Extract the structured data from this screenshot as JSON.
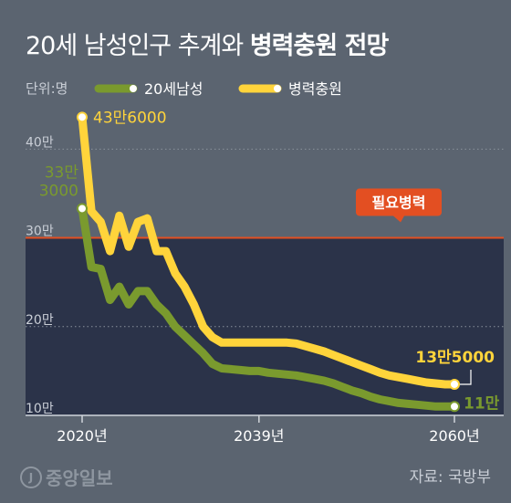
{
  "title": {
    "main": "20세 남성인구 추계와",
    "bold": "병력충원 전망"
  },
  "unit": "단위:명",
  "legend": [
    {
      "label": "20세남성",
      "color": "#7a9a2e"
    },
    {
      "label": "병력충원",
      "color": "#ffd43b"
    }
  ],
  "source": "자료: 국방부",
  "logo": {
    "text": "중앙일보",
    "icon": "j-circle-logo-icon"
  },
  "chart_data": {
    "type": "line",
    "ylim": [
      100000,
      460000
    ],
    "xlim": [
      2020,
      2060
    ],
    "ytick_labels": [
      {
        "value": 400000,
        "label": "40만"
      },
      {
        "value": 300000,
        "label": "30만"
      },
      {
        "value": 200000,
        "label": "20만"
      },
      {
        "value": 100000,
        "label": "10만"
      }
    ],
    "xtick_labels": [
      {
        "value": 2020,
        "label": "2020년"
      },
      {
        "value": 2039,
        "label": "2039년"
      },
      {
        "value": 2060,
        "label": "2060년"
      }
    ],
    "reference_line": {
      "value": 300000,
      "label": "필요병력",
      "color": "#e34f22"
    },
    "series": [
      {
        "name": "20세남성",
        "color": "#7a9a2e",
        "x": [
          2020,
          2021,
          2022,
          2023,
          2024,
          2025,
          2026,
          2027,
          2028,
          2029,
          2030,
          2031,
          2032,
          2033,
          2034,
          2035,
          2036,
          2037,
          2038,
          2039,
          2040,
          2041,
          2042,
          2043,
          2044,
          2045,
          2046,
          2047,
          2048,
          2049,
          2050,
          2051,
          2052,
          2053,
          2054,
          2055,
          2056,
          2057,
          2058,
          2059,
          2060
        ],
        "y": [
          333000,
          267000,
          265000,
          230000,
          245000,
          225000,
          240000,
          240000,
          225000,
          215000,
          200000,
          190000,
          180000,
          170000,
          158000,
          153000,
          152000,
          151000,
          150000,
          150000,
          148000,
          147000,
          146000,
          145000,
          143000,
          141000,
          139000,
          136000,
          132000,
          128000,
          125000,
          121000,
          118000,
          116000,
          114000,
          113000,
          112000,
          111000,
          110000,
          110000,
          110000
        ],
        "labels": [
          {
            "x": 2020,
            "y": 333000,
            "lines": [
              "33만",
              "3000"
            ]
          },
          {
            "x": 2060,
            "y": 110000,
            "lines": [
              "11만"
            ]
          }
        ]
      },
      {
        "name": "병력충원",
        "color": "#ffd43b",
        "x": [
          2020,
          2021,
          2022,
          2023,
          2024,
          2025,
          2026,
          2027,
          2028,
          2029,
          2030,
          2031,
          2032,
          2033,
          2034,
          2035,
          2036,
          2037,
          2038,
          2039,
          2040,
          2041,
          2042,
          2043,
          2044,
          2045,
          2046,
          2047,
          2048,
          2049,
          2050,
          2051,
          2052,
          2053,
          2054,
          2055,
          2056,
          2057,
          2058,
          2059,
          2060
        ],
        "y": [
          436000,
          330000,
          318000,
          285000,
          325000,
          290000,
          318000,
          322000,
          285000,
          285000,
          260000,
          245000,
          225000,
          200000,
          188000,
          182000,
          182000,
          182000,
          182000,
          182000,
          182000,
          182000,
          182000,
          181000,
          178000,
          175000,
          172000,
          168000,
          164000,
          160000,
          156000,
          152000,
          148000,
          145000,
          143000,
          141000,
          139000,
          137000,
          136000,
          135000,
          135000
        ],
        "labels": [
          {
            "x": 2020,
            "y": 436000,
            "lines": [
              "43만6000"
            ]
          },
          {
            "x": 2060,
            "y": 135000,
            "lines": [
              "13만5000"
            ]
          }
        ]
      }
    ]
  }
}
